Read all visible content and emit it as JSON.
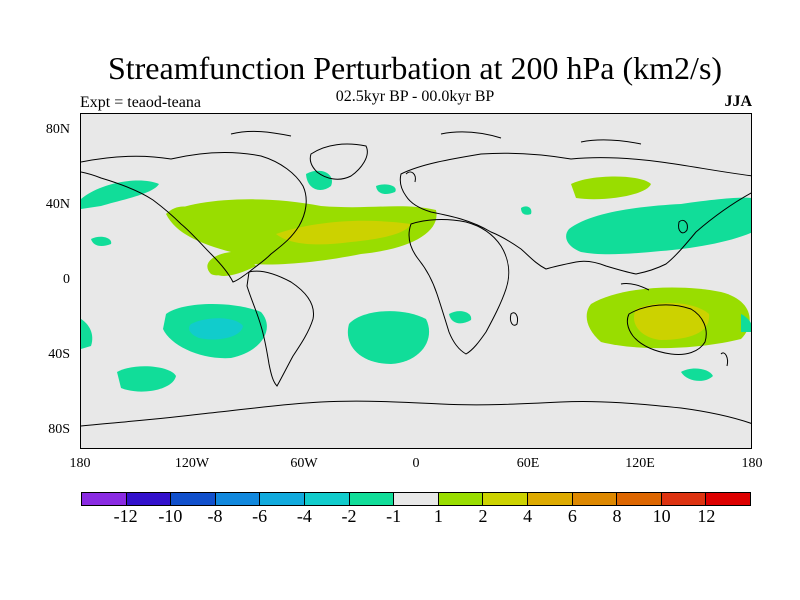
{
  "title": "Streamfunction Perturbation at 200 hPa (km2/s)",
  "subtitle": "02.5kyr BP - 00.0kyr BP",
  "left_label": "Expt = teaod-teana",
  "right_label": "JJA",
  "y_ticks": [
    "80N",
    "40N",
    "0",
    "40S",
    "80S"
  ],
  "x_ticks": [
    "180",
    "120W",
    "60W",
    "0",
    "60E",
    "120E",
    "180"
  ],
  "colorbar": {
    "colors": [
      "#8a2be2",
      "#3311cc",
      "#1150cc",
      "#1188dd",
      "#11aadd",
      "#11cccc",
      "#11dd99",
      "#e8e8e8",
      "#99dd00",
      "#ccd200",
      "#ddaa00",
      "#dd8800",
      "#dd6600",
      "#dd3311",
      "#dd0000"
    ],
    "labels": [
      "-12",
      "-10",
      "-8",
      "-6",
      "-4",
      "-2",
      "-1",
      "1",
      "2",
      "4",
      "6",
      "8",
      "10",
      "12"
    ]
  },
  "map": {
    "background": "#e8e8e8",
    "coastline_color": "#000000"
  }
}
